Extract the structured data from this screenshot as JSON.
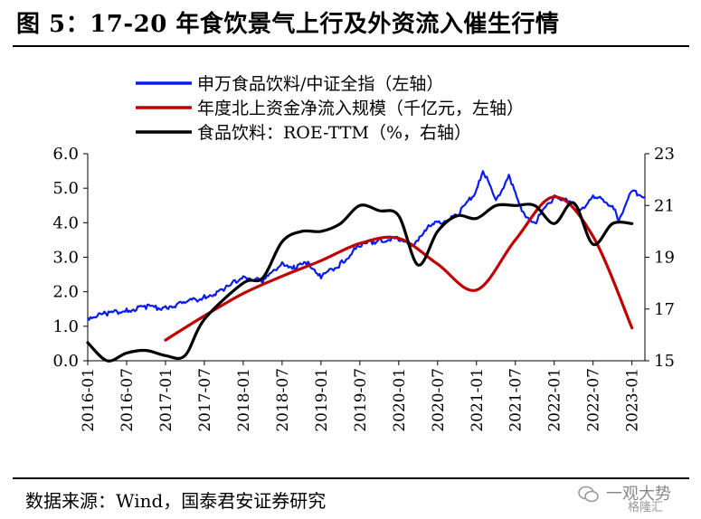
{
  "title": "图 5：17-20 年食饮景气上行及外资流入催生行情",
  "source": "数据来源：Wind，国泰君安证券研究",
  "watermark": {
    "text": "一观大势",
    "sub": "格隆汇"
  },
  "colors": {
    "blue": "#0a1bf0",
    "red": "#c00000",
    "black": "#000000"
  },
  "chart_data": {
    "type": "line",
    "x_ticks": [
      "2016-01",
      "2016-07",
      "2017-01",
      "2017-07",
      "2018-01",
      "2018-07",
      "2019-01",
      "2019-07",
      "2020-01",
      "2020-07",
      "2021-01",
      "2021-07",
      "2022-01",
      "2022-07",
      "2023-01"
    ],
    "x_range": [
      "2016-01",
      "2023-03"
    ],
    "ylim_left": [
      0.0,
      6.0
    ],
    "yticks_left": [
      "0.0",
      "1.0",
      "2.0",
      "3.0",
      "4.0",
      "5.0",
      "6.0"
    ],
    "ylim_right": [
      15,
      23
    ],
    "yticks_right": [
      "15",
      "17",
      "19",
      "21",
      "23"
    ],
    "legend": [
      {
        "name": "申万食品饮料/中证全指（左轴）",
        "color": "#0a1bf0"
      },
      {
        "name": "年度北上资金净流入规模（千亿元，左轴）",
        "color": "#c00000"
      },
      {
        "name": "食品饮料：ROE-TTM（%，右轴）",
        "color": "#000000"
      }
    ],
    "series": [
      {
        "name": "申万食品饮料/中证全指（左轴）",
        "axis": "left",
        "color": "#0a1bf0",
        "points": [
          [
            "2016-01",
            1.25
          ],
          [
            "2016-04",
            1.38
          ],
          [
            "2016-07",
            1.45
          ],
          [
            "2016-10",
            1.55
          ],
          [
            "2017-01",
            1.55
          ],
          [
            "2017-04",
            1.68
          ],
          [
            "2017-07",
            1.85
          ],
          [
            "2017-10",
            2.05
          ],
          [
            "2018-01",
            2.45
          ],
          [
            "2018-04",
            2.3
          ],
          [
            "2018-07",
            2.85
          ],
          [
            "2018-09",
            2.7
          ],
          [
            "2018-11",
            2.85
          ],
          [
            "2019-01",
            2.45
          ],
          [
            "2019-04",
            2.8
          ],
          [
            "2019-07",
            3.35
          ],
          [
            "2019-10",
            3.5
          ],
          [
            "2020-01",
            3.55
          ],
          [
            "2020-03",
            3.3
          ],
          [
            "2020-05",
            3.8
          ],
          [
            "2020-07",
            4.0
          ],
          [
            "2020-10",
            4.2
          ],
          [
            "2021-01",
            4.9
          ],
          [
            "2021-02",
            5.55
          ],
          [
            "2021-04",
            4.6
          ],
          [
            "2021-06",
            5.4
          ],
          [
            "2021-08",
            4.3
          ],
          [
            "2021-10",
            4.0
          ],
          [
            "2022-01",
            4.75
          ],
          [
            "2022-03",
            4.7
          ],
          [
            "2022-05",
            4.35
          ],
          [
            "2022-07",
            4.8
          ],
          [
            "2022-10",
            4.45
          ],
          [
            "2022-11",
            4.1
          ],
          [
            "2023-01",
            4.9
          ],
          [
            "2023-03",
            4.75
          ]
        ]
      },
      {
        "name": "年度北上资金净流入规模（千亿元，左轴）",
        "axis": "left",
        "color": "#c00000",
        "points": [
          [
            "2017-01",
            0.6
          ],
          [
            "2017-07",
            1.3
          ],
          [
            "2018-01",
            1.95
          ],
          [
            "2018-07",
            2.45
          ],
          [
            "2019-01",
            2.9
          ],
          [
            "2019-07",
            3.4
          ],
          [
            "2020-01",
            3.55
          ],
          [
            "2020-07",
            2.8
          ],
          [
            "2021-01",
            2.05
          ],
          [
            "2021-07",
            3.5
          ],
          [
            "2022-01",
            4.75
          ],
          [
            "2022-07",
            3.6
          ],
          [
            "2023-01",
            0.95
          ]
        ]
      },
      {
        "name": "食品饮料：ROE-TTM（%，右轴）",
        "axis": "right",
        "color": "#000000",
        "points": [
          [
            "2016-01",
            15.7
          ],
          [
            "2016-04",
            15.0
          ],
          [
            "2016-07",
            15.3
          ],
          [
            "2016-10",
            15.4
          ],
          [
            "2017-01",
            15.2
          ],
          [
            "2017-04",
            15.2
          ],
          [
            "2017-07",
            16.6
          ],
          [
            "2018-01",
            18.0
          ],
          [
            "2018-04",
            18.2
          ],
          [
            "2018-07",
            19.6
          ],
          [
            "2018-10",
            20.0
          ],
          [
            "2019-01",
            20.0
          ],
          [
            "2019-04",
            20.3
          ],
          [
            "2019-07",
            21.0
          ],
          [
            "2019-10",
            20.8
          ],
          [
            "2020-01",
            20.6
          ],
          [
            "2020-04",
            18.7
          ],
          [
            "2020-07",
            20.0
          ],
          [
            "2020-10",
            20.6
          ],
          [
            "2021-01",
            20.5
          ],
          [
            "2021-04",
            21.0
          ],
          [
            "2021-07",
            21.0
          ],
          [
            "2021-10",
            21.0
          ],
          [
            "2022-01",
            20.3
          ],
          [
            "2022-04",
            21.1
          ],
          [
            "2022-07",
            19.5
          ],
          [
            "2022-10",
            20.3
          ],
          [
            "2023-01",
            20.3
          ]
        ]
      }
    ]
  }
}
